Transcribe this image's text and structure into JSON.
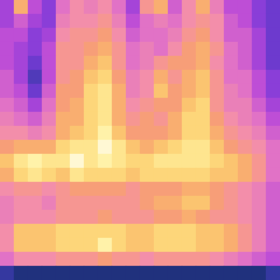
{
  "chart_data": {
    "type": "heatmap",
    "cells": [
      [
        30,
        70,
        35,
        25,
        45,
        55,
        50,
        55,
        45,
        30,
        60,
        70,
        40,
        55,
        70,
        50,
        35,
        35,
        25,
        20
      ],
      [
        30,
        40,
        30,
        25,
        50,
        55,
        55,
        60,
        50,
        35,
        45,
        50,
        45,
        55,
        60,
        55,
        40,
        35,
        25,
        20
      ],
      [
        35,
        35,
        25,
        30,
        55,
        60,
        60,
        65,
        55,
        40,
        45,
        45,
        50,
        60,
        65,
        55,
        40,
        40,
        30,
        20
      ],
      [
        35,
        30,
        25,
        35,
        60,
        60,
        65,
        70,
        60,
        45,
        50,
        45,
        55,
        65,
        70,
        60,
        45,
        40,
        30,
        20
      ],
      [
        35,
        30,
        20,
        35,
        60,
        60,
        70,
        75,
        60,
        45,
        50,
        60,
        65,
        65,
        70,
        55,
        45,
        40,
        30,
        20
      ],
      [
        40,
        30,
        15,
        35,
        60,
        65,
        75,
        80,
        65,
        50,
        55,
        70,
        60,
        70,
        75,
        60,
        45,
        45,
        35,
        25
      ],
      [
        40,
        35,
        20,
        40,
        65,
        65,
        80,
        85,
        70,
        50,
        55,
        75,
        65,
        70,
        75,
        60,
        50,
        45,
        35,
        25
      ],
      [
        45,
        40,
        30,
        45,
        65,
        70,
        80,
        85,
        70,
        55,
        60,
        65,
        65,
        75,
        80,
        60,
        50,
        50,
        40,
        30
      ],
      [
        50,
        45,
        40,
        50,
        70,
        70,
        80,
        85,
        70,
        60,
        65,
        60,
        70,
        80,
        80,
        65,
        55,
        50,
        45,
        35
      ],
      [
        55,
        55,
        50,
        55,
        70,
        75,
        80,
        90,
        75,
        65,
        65,
        65,
        70,
        80,
        80,
        70,
        60,
        55,
        50,
        40
      ],
      [
        65,
        70,
        70,
        70,
        80,
        85,
        85,
        95,
        85,
        75,
        70,
        75,
        80,
        85,
        85,
        75,
        65,
        60,
        55,
        45
      ],
      [
        75,
        85,
        90,
        85,
        85,
        95,
        85,
        90,
        85,
        80,
        80,
        85,
        85,
        85,
        85,
        80,
        75,
        70,
        60,
        45
      ],
      [
        70,
        80,
        85,
        80,
        75,
        85,
        80,
        80,
        80,
        75,
        80,
        80,
        80,
        80,
        80,
        75,
        75,
        70,
        60,
        45
      ],
      [
        55,
        60,
        60,
        55,
        60,
        65,
        65,
        65,
        65,
        60,
        65,
        65,
        65,
        70,
        70,
        65,
        60,
        55,
        50,
        40
      ],
      [
        50,
        55,
        55,
        50,
        60,
        60,
        60,
        60,
        60,
        60,
        65,
        70,
        70,
        75,
        75,
        65,
        60,
        55,
        50,
        40
      ],
      [
        50,
        55,
        55,
        55,
        60,
        60,
        60,
        65,
        60,
        60,
        60,
        65,
        65,
        70,
        65,
        60,
        60,
        55,
        50,
        40
      ],
      [
        55,
        75,
        75,
        75,
        80,
        80,
        80,
        80,
        80,
        75,
        75,
        80,
        80,
        80,
        75,
        75,
        70,
        60,
        50,
        40
      ],
      [
        55,
        75,
        75,
        75,
        80,
        80,
        80,
        90,
        80,
        75,
        75,
        80,
        80,
        80,
        75,
        75,
        70,
        60,
        50,
        40
      ],
      [
        45,
        55,
        55,
        55,
        60,
        60,
        60,
        65,
        60,
        60,
        55,
        60,
        60,
        60,
        60,
        55,
        50,
        45,
        40,
        35
      ],
      [
        10,
        5,
        5,
        5,
        5,
        5,
        5,
        5,
        5,
        5,
        5,
        5,
        5,
        5,
        5,
        5,
        5,
        5,
        5,
        10
      ]
    ],
    "zlim": [
      0,
      100
    ],
    "tick_labels": false,
    "grid": false
  }
}
